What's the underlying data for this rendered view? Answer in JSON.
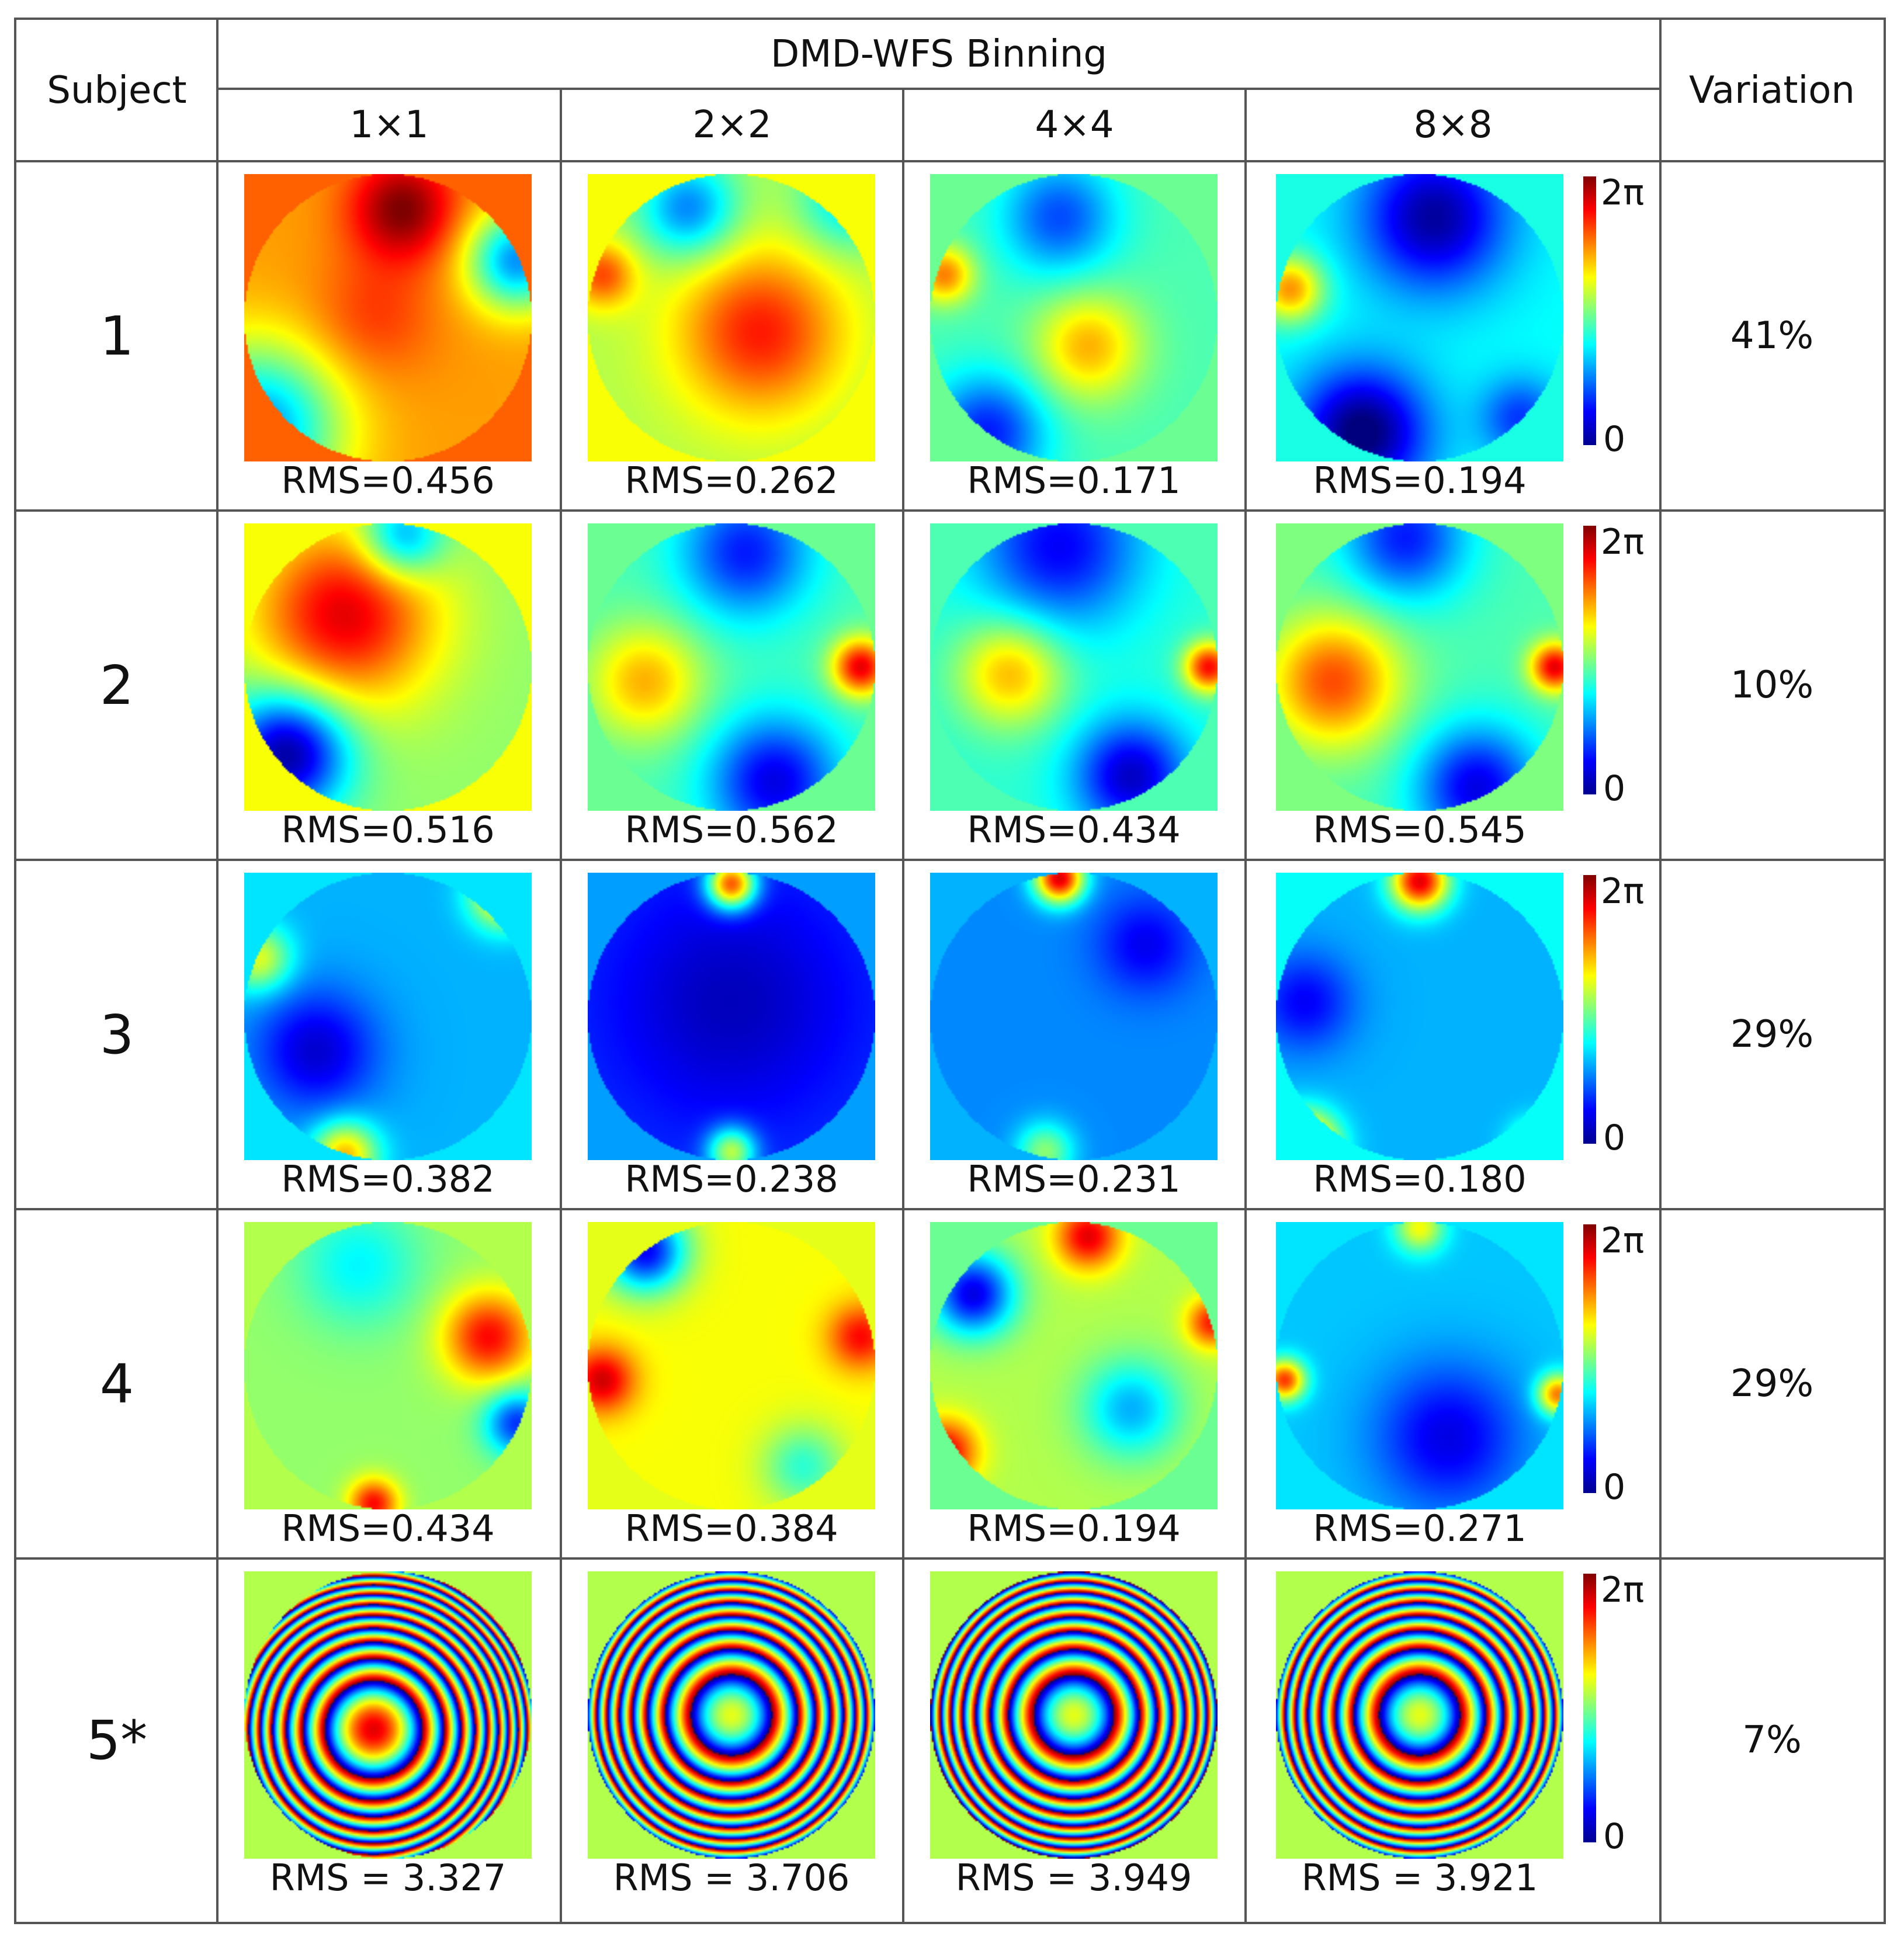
{
  "header": {
    "subject": "Subject",
    "group": "DMD-WFS Binning",
    "variation": "Variation",
    "binnings": [
      "1×1",
      "2×2",
      "4×4",
      "8×8"
    ]
  },
  "colorbar": {
    "top_label": "2π",
    "bottom_label": "0",
    "colormap": "jet"
  },
  "rows": [
    {
      "subject": "1",
      "variation": "41%",
      "rms": [
        "RMS=0.456",
        "RMS=0.262",
        "RMS=0.171",
        "RMS=0.194"
      ]
    },
    {
      "subject": "2",
      "variation": "10%",
      "rms": [
        "RMS=0.516",
        "RMS=0.562",
        "RMS=0.434",
        "RMS=0.545"
      ]
    },
    {
      "subject": "3",
      "variation": "29%",
      "rms": [
        "RMS=0.382",
        "RMS=0.238",
        "RMS=0.231",
        "RMS=0.180"
      ]
    },
    {
      "subject": "4",
      "variation": "29%",
      "rms": [
        "RMS=0.434",
        "RMS=0.384",
        "RMS=0.194",
        "RMS=0.271"
      ]
    },
    {
      "subject": "5*",
      "variation": "7%",
      "rms": [
        "RMS = 3.327",
        "RMS = 3.706",
        "RMS = 3.949",
        "RMS = 3.921"
      ]
    }
  ]
}
